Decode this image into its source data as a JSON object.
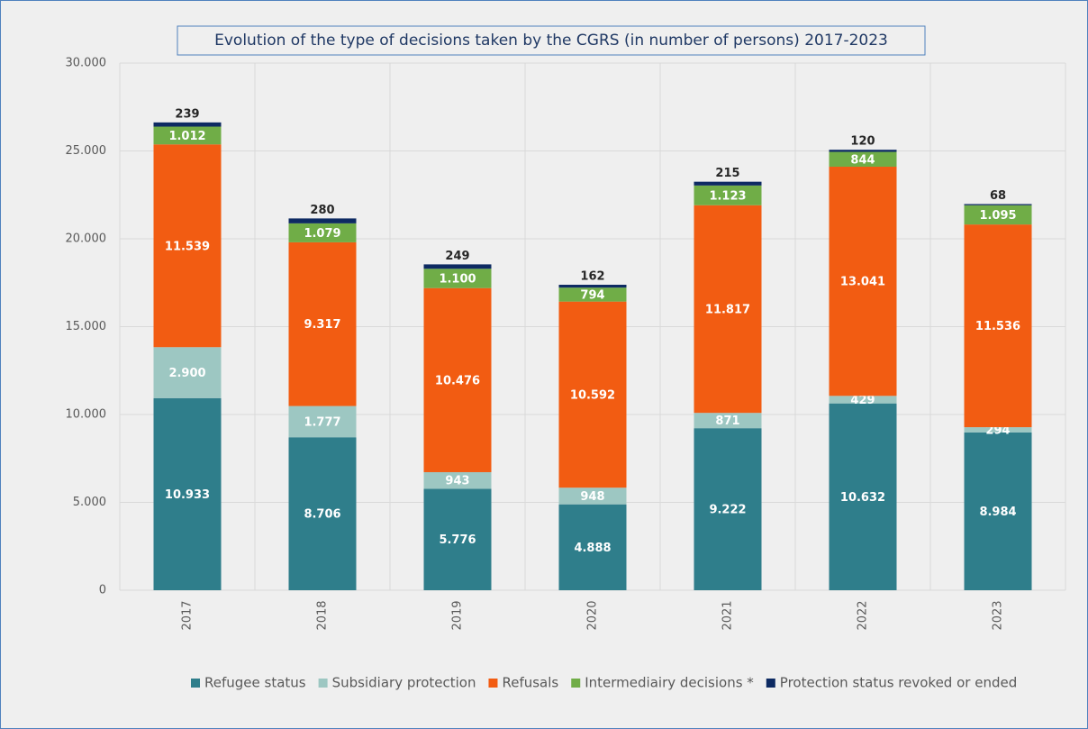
{
  "chart_data": {
    "type": "stacked_bar",
    "title": "Evolution of the type of decisions taken by the CGRS (in number of persons) 2017-2023",
    "categories": [
      "2017",
      "2018",
      "2019",
      "2020",
      "2021",
      "2022",
      "2023"
    ],
    "series": [
      {
        "name": "Refugee status",
        "color": "#2f7e8b",
        "values": [
          10933,
          8706,
          5776,
          4888,
          9222,
          10632,
          8984
        ],
        "value_labels": [
          "10.933",
          "8.706",
          "5.776",
          "4.888",
          "9.222",
          "10.632",
          "8.984"
        ]
      },
      {
        "name": "Subsidiary protection",
        "color": "#9dc7c2",
        "values": [
          2900,
          1777,
          943,
          948,
          871,
          429,
          294
        ],
        "value_labels": [
          "2.900",
          "1.777",
          "943",
          "948",
          "871",
          "429",
          "294"
        ]
      },
      {
        "name": "Refusals",
        "color": "#f25c12",
        "values": [
          11539,
          9317,
          10476,
          10592,
          11817,
          13041,
          11536
        ],
        "value_labels": [
          "11.539",
          "9.317",
          "10.476",
          "10.592",
          "11.817",
          "13.041",
          "11.536"
        ]
      },
      {
        "name": "Intermediairy decisions *",
        "color": "#70ad47",
        "values": [
          1012,
          1079,
          1100,
          794,
          1123,
          844,
          1095
        ],
        "value_labels": [
          "1.012",
          "1.079",
          "1.100",
          "794",
          "1.123",
          "844",
          "1.095"
        ]
      },
      {
        "name": "Protection status revoked or ended",
        "color": "#0d2a62",
        "values": [
          239,
          280,
          249,
          162,
          215,
          120,
          68
        ]
      }
    ],
    "ylim": [
      0,
      30000
    ],
    "yticks": [
      0,
      {
        "value": 5000,
        "label": "5.000"
      },
      {
        "value": 10000,
        "label": "10.000"
      },
      {
        "value": 15000,
        "label": "15.000"
      },
      {
        "value": 20000,
        "label": "20.000"
      },
      {
        "value": 25000,
        "label": "25.000"
      },
      {
        "value": 30000,
        "label": "30.000"
      }
    ],
    "grid": true,
    "legend": "bottom"
  }
}
